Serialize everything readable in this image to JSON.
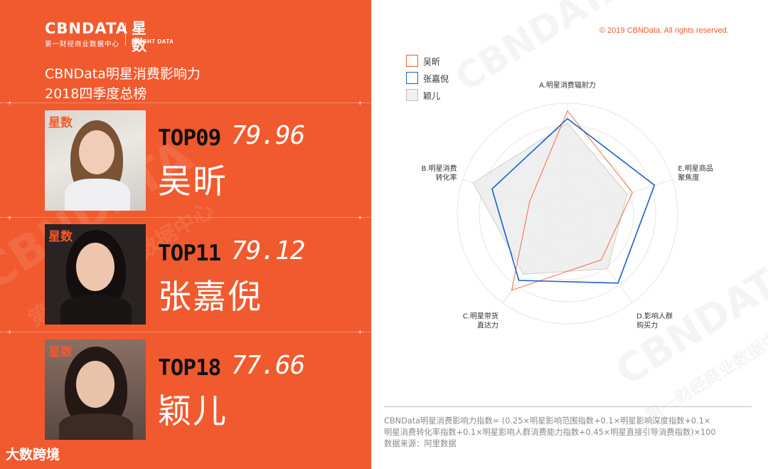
{
  "brand": {
    "cbndata": "CBNDATA",
    "cbndata_sub": "第一财经商业数据中心",
    "xingshu": "星数",
    "xingshu_sub": "BRIGHT DATA"
  },
  "title": {
    "line1": "CBNData明星消费影响力",
    "line2": "2018四季度总榜"
  },
  "entries": [
    {
      "rank": "TOP09",
      "score": "79.96",
      "name": "吴昕",
      "photo_logo": "星数"
    },
    {
      "rank": "TOP11",
      "score": "79.12",
      "name": "张嘉倪",
      "photo_logo": "星数"
    },
    {
      "rank": "TOP18",
      "score": "77.66",
      "name": "颖儿",
      "photo_logo": "星数"
    }
  ],
  "watermark": {
    "text": "CBNDATA",
    "sub": "第一财经商业数据中心"
  },
  "footer_logo": "大数跨境",
  "copyright": "© 2019 CBNData. All rights reserved.",
  "legend": [
    {
      "name": "吴昕",
      "color": "#f15a2e"
    },
    {
      "name": "张嘉倪",
      "color": "#1c5fc9"
    },
    {
      "name": "颖儿",
      "color": "#cfcfcf"
    }
  ],
  "chart_data": {
    "type": "radar",
    "axes": [
      [
        "A.明星消费辐射力"
      ],
      [
        "E.明星商品",
        "聚焦度"
      ],
      [
        "D.影响人群",
        "购买力"
      ],
      [
        "C.明星带货",
        "直达力"
      ],
      [
        "B.明星消费",
        "转化率"
      ]
    ],
    "range": [
      0,
      100
    ],
    "grid_rings": 5,
    "series": [
      {
        "name": "吴昕",
        "values": [
          93,
          62,
          52,
          86,
          36
        ]
      },
      {
        "name": "张嘉倪",
        "values": [
          86,
          83,
          78,
          75,
          72
        ]
      },
      {
        "name": "颖儿",
        "values": [
          82,
          57,
          62,
          68,
          90
        ]
      }
    ]
  },
  "formula": {
    "line1": "CBNData明星消费影响力指数= (0.25×明星影响范围指数+0.1×明星影响深度指数+0.1×",
    "line2": "明星消费转化率指数+0.1×明星影响人群消费能力指数+0.45×明星直接引导消费指数)×100",
    "line3": "数据来源：阿里数据"
  }
}
